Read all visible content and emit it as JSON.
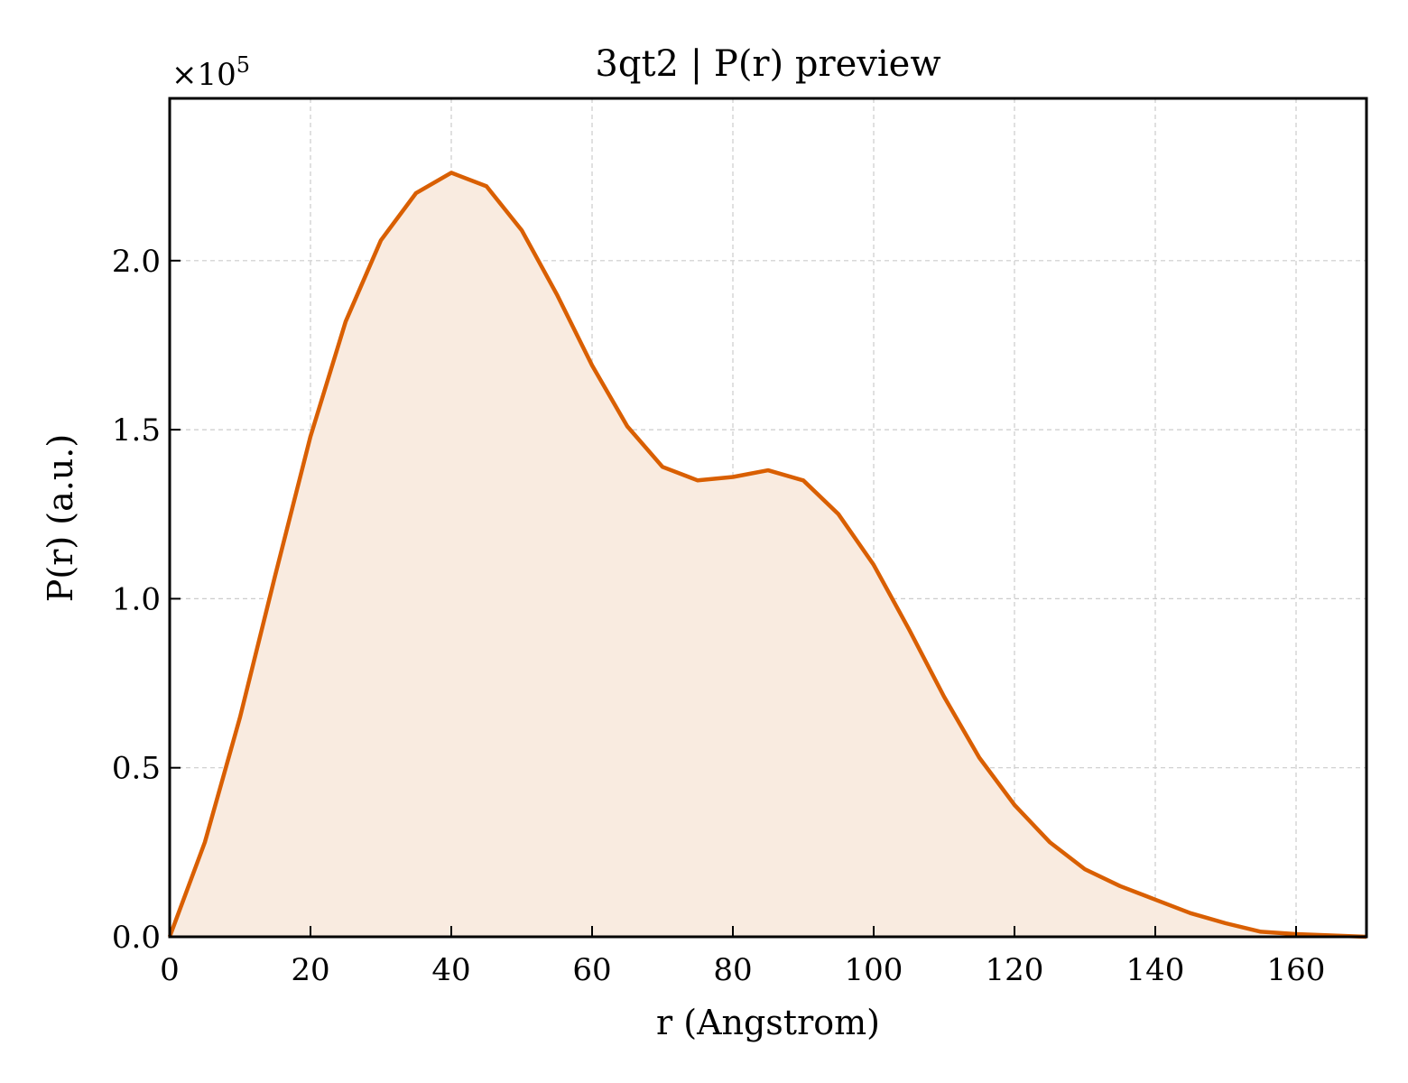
{
  "chart_data": {
    "type": "area",
    "title": "3qt2 | P(r) preview",
    "xlabel": "r (Angstrom)",
    "ylabel": "P(r) (a.u.)",
    "y_multiplier_base": "×10",
    "y_multiplier_exp": "5",
    "xlim": [
      0,
      170
    ],
    "ylim": [
      0,
      2.48
    ],
    "x_ticks": [
      0,
      20,
      40,
      60,
      80,
      100,
      120,
      140,
      160
    ],
    "y_ticks": [
      0.0,
      0.5,
      1.0,
      1.5,
      2.0
    ],
    "y_tick_labels": [
      "0.0",
      "0.5",
      "1.0",
      "1.5",
      "2.0"
    ],
    "grid": true,
    "series": [
      {
        "x": [
          0,
          5,
          10,
          15,
          20,
          25,
          30,
          35,
          40,
          45,
          50,
          55,
          60,
          65,
          70,
          75,
          80,
          85,
          90,
          95,
          100,
          105,
          110,
          115,
          120,
          125,
          130,
          135,
          140,
          145,
          150,
          155,
          160,
          165,
          170
        ],
        "y": [
          0.0,
          0.28,
          0.65,
          1.07,
          1.48,
          1.82,
          2.06,
          2.2,
          2.26,
          2.22,
          2.09,
          1.9,
          1.69,
          1.51,
          1.39,
          1.35,
          1.36,
          1.38,
          1.35,
          1.25,
          1.1,
          0.91,
          0.71,
          0.53,
          0.39,
          0.28,
          0.2,
          0.15,
          0.11,
          0.07,
          0.04,
          0.015,
          0.008,
          0.004,
          0.0
        ],
        "color": "#d95f02",
        "fill_color": "#f9ebe0"
      }
    ]
  }
}
